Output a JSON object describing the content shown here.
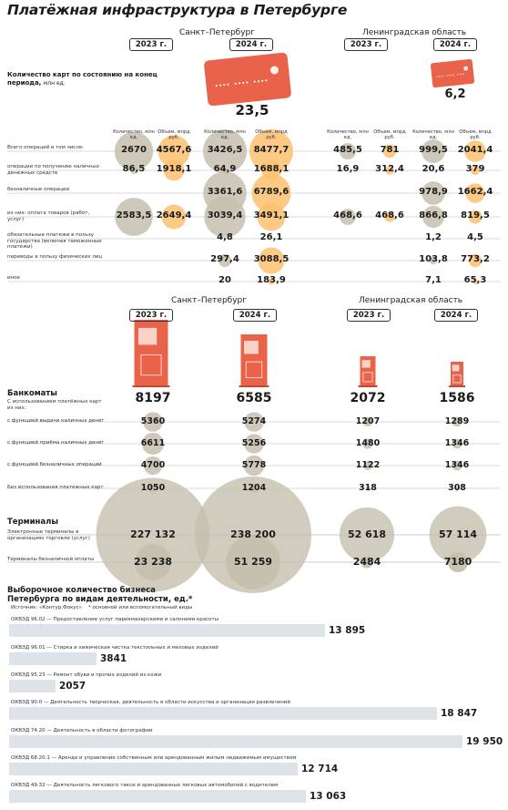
{
  "title": "Платёжная инфраструктура в Петербурге",
  "regions": {
    "spb": "Санкт–Петербург",
    "lo": "Ленинградская область"
  },
  "years": {
    "y2023": "2023 г.",
    "y2024": "2024 г."
  },
  "colors": {
    "orange": "#e8634a",
    "light_orange": "#fbc16f",
    "circle_gray": "#c5c0ae",
    "bar_gray": "#dde3e9"
  },
  "cards": {
    "heading": "Количество карт по состоянию на конец периода,",
    "unit": "млн ед.",
    "spb_2024": "23,5",
    "lo_2024": "6,2",
    "col_count": "Количество, млн ед.",
    "col_volume": "Объем, млрд руб.",
    "rows": [
      {
        "label": "Всего операций в том числе:",
        "spb23c": "2670",
        "spb23v": "4567,6",
        "spb24c": "3426,5",
        "spb24v": "8477,7",
        "lo23c": "485,5",
        "lo23v": "781",
        "lo24c": "999,5",
        "lo24v": "2041,4"
      },
      {
        "label": "операции по получению наличных денежных средств",
        "spb23c": "86,5",
        "spb23v": "1918,1",
        "spb24c": "64,9",
        "spb24v": "1688,1",
        "lo23c": "16,9",
        "lo23v": "312,4",
        "lo24c": "20,6",
        "lo24v": "379"
      },
      {
        "label": "безналичные операции",
        "spb23c": "",
        "spb23v": "",
        "spb24c": "3361,6",
        "spb24v": "6789,6",
        "lo23c": "",
        "lo23v": "",
        "lo24c": "978,9",
        "lo24v": "1662,4"
      },
      {
        "label": "из них: оплата товаров (работ, услуг)",
        "spb23c": "2583,5",
        "spb23v": "2649,4",
        "spb24c": "3039,4",
        "spb24v": "3491,1",
        "lo23c": "468,6",
        "lo23v": "468,6",
        "lo24c": "866,8",
        "lo24v": "819,5"
      },
      {
        "label": "обязательные платежи в пользу государства (включая таможенные платежи)",
        "spb23c": "",
        "spb23v": "",
        "spb24c": "4,8",
        "spb24v": "26,1",
        "lo23c": "",
        "lo23v": "",
        "lo24c": "1,2",
        "lo24v": "4,5"
      },
      {
        "label": "переводы в пользу физических лиц",
        "spb23c": "",
        "spb23v": "",
        "spb24c": "297,4",
        "spb24v": "3088,5",
        "lo23c": "",
        "lo23v": "",
        "lo24c": "103,8",
        "lo24v": "773,2"
      },
      {
        "label": "иное",
        "spb23c": "",
        "spb23v": "",
        "spb24c": "20",
        "spb24v": "183,9",
        "lo23c": "",
        "lo23v": "",
        "lo24c": "7,1",
        "lo24v": "65,3"
      }
    ]
  },
  "atm": {
    "heading": "Банкоматы",
    "sub": "С использованием платёжных карт из них:",
    "totals": {
      "spb23": "8197",
      "spb24": "6585",
      "lo23": "2072",
      "lo24": "1586"
    },
    "rows": [
      {
        "label": "с функцией выдачи наличных денег",
        "spb23": "5360",
        "spb24": "5274",
        "lo23": "1207",
        "lo24": "1289"
      },
      {
        "label": "с функцией приёма наличных денег",
        "spb23": "6611",
        "spb24": "5256",
        "lo23": "1480",
        "lo24": "1346"
      },
      {
        "label": "с функцией безналичных операций",
        "spb23": "4700",
        "spb24": "5778",
        "lo23": "1122",
        "lo24": "1346"
      },
      {
        "label": "Без использования платежных карт",
        "spb23": "1050",
        "spb24": "1204",
        "lo23": "318",
        "lo24": "308"
      }
    ]
  },
  "terminals": {
    "heading": "Терминалы",
    "rows": [
      {
        "label": "Электронные терминалы в организациях торговли (услуг)",
        "spb23": "227 132",
        "spb24": "238 200",
        "lo23": "52 618",
        "lo24": "57 114"
      },
      {
        "label": "Терминалы безналичной оплаты",
        "spb23": "23 238",
        "spb24": "51 259",
        "lo23": "2484",
        "lo24": "7180"
      }
    ]
  },
  "business": {
    "heading1": "Выборочное количество бизнеса",
    "heading2": "Петербурга по видам деятельности, ед.*",
    "source": "Источник: «Контур.Фокус»",
    "footnote": "* основной или вспомогательный виды"
  },
  "chart_data": {
    "type": "bar",
    "title": "Выборочное количество бизнеса Петербурга по видам деятельности, ед.*",
    "categories": [
      "ОКВЭД 96.02 — Предоставление услуг парикмахерскими и салонами красоты",
      "ОКВЭД 96.01 — Стирка и химическая чистка текстильных и меховых изделий",
      "ОКВЭД 95.23 — Ремонт обуви и прочих изделий из кожи",
      "ОКВЭД 90.0 — Деятельность творческая, деятельность в области искусства и организации развлечений",
      "ОКВЭД 74.20 — Деятельность в области фотографии",
      "ОКВЭД 68.20.1 — Аренда и управление собственным или арендованным жилым недвижимым имуществом",
      "ОКВЭД 49.32 — Деятельность легкового такси и арендованных легковых автомобилей с водителем"
    ],
    "values": [
      13895,
      3841,
      2057,
      18847,
      19950,
      12714,
      13063
    ],
    "labels": [
      "13 895",
      "3841",
      "2057",
      "18 847",
      "19 950",
      "12 714",
      "13 063"
    ]
  }
}
